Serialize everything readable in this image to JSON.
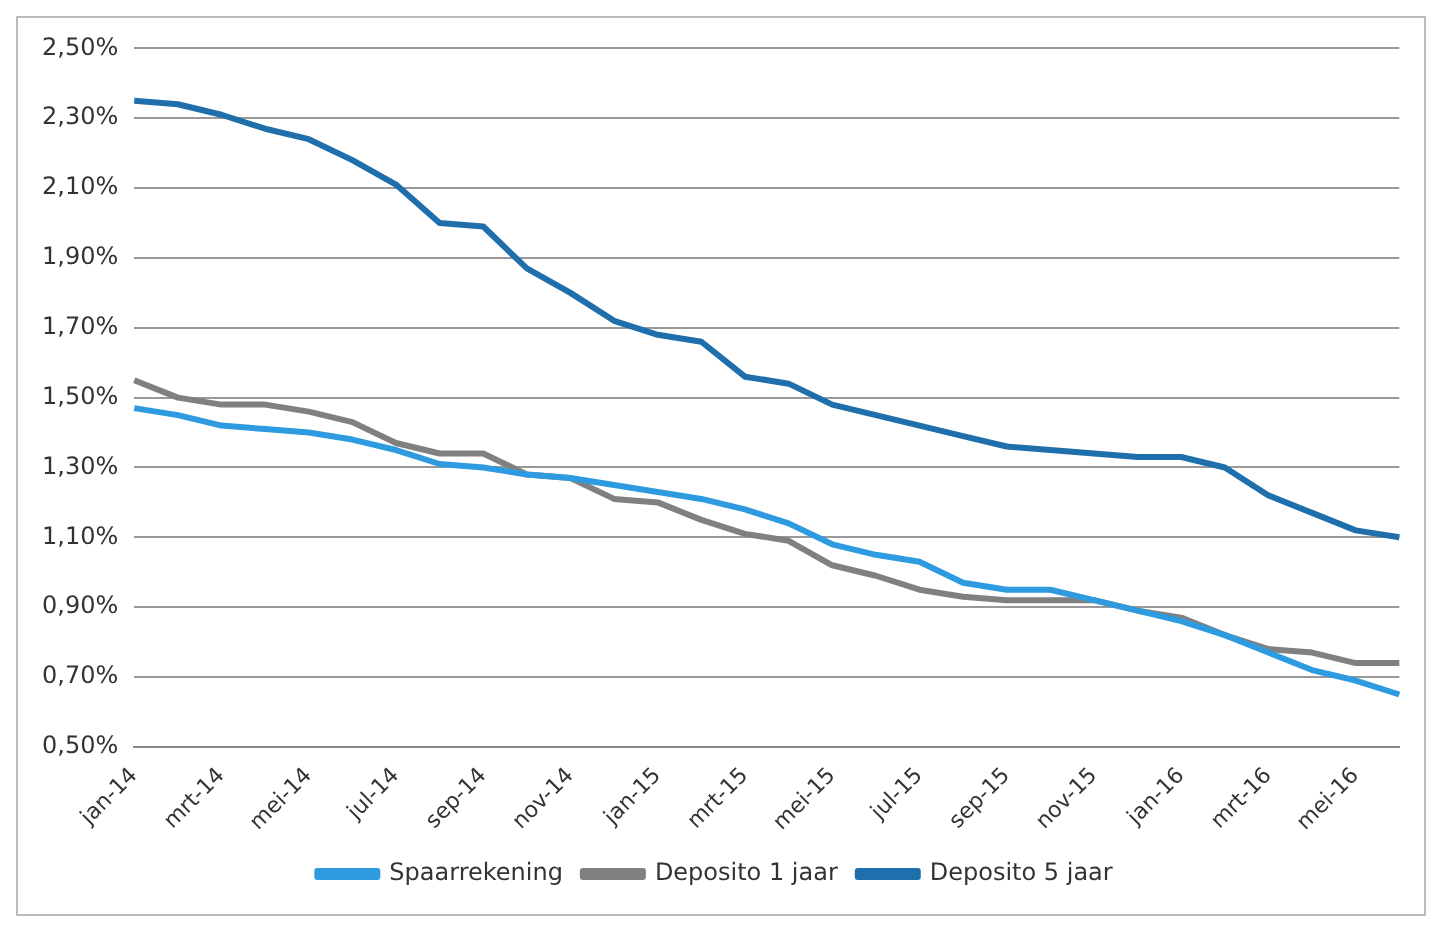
{
  "chart_data": {
    "type": "line",
    "categories": [
      "jan-14",
      null,
      "mrt-14",
      null,
      "mei-14",
      null,
      "jul-14",
      null,
      "sep-14",
      null,
      "nov-14",
      null,
      "jan-15",
      null,
      "mrt-15",
      null,
      "mei-15",
      null,
      "jul-15",
      null,
      "sep-15",
      null,
      "nov-15",
      null,
      "jan-16",
      null,
      "mrt-16",
      null,
      "mei-16",
      null
    ],
    "series": [
      {
        "name": "Spaarrekening",
        "color": "#2e9be0",
        "values": [
          1.47,
          1.45,
          1.42,
          1.41,
          1.4,
          1.38,
          1.35,
          1.31,
          1.3,
          1.28,
          1.27,
          1.25,
          1.23,
          1.21,
          1.18,
          1.14,
          1.08,
          1.05,
          1.03,
          0.97,
          0.95,
          0.95,
          0.92,
          0.89,
          0.86,
          0.82,
          0.77,
          0.72,
          0.69,
          0.65
        ]
      },
      {
        "name": "Deposito 1 jaar",
        "color": "#808080",
        "values": [
          1.55,
          1.5,
          1.48,
          1.48,
          1.46,
          1.43,
          1.37,
          1.34,
          1.34,
          1.28,
          1.27,
          1.21,
          1.2,
          1.15,
          1.11,
          1.09,
          1.02,
          0.99,
          0.95,
          0.93,
          0.92,
          0.92,
          0.92,
          0.89,
          0.87,
          0.82,
          0.78,
          0.77,
          0.74,
          0.74
        ]
      },
      {
        "name": "Deposito 5 jaar",
        "color": "#1f6fad",
        "values": [
          2.35,
          2.34,
          2.31,
          2.27,
          2.24,
          2.18,
          2.11,
          2.0,
          1.99,
          1.87,
          1.8,
          1.72,
          1.68,
          1.66,
          1.56,
          1.54,
          1.48,
          1.45,
          1.42,
          1.39,
          1.36,
          1.35,
          1.34,
          1.33,
          1.33,
          1.3,
          1.22,
          1.17,
          1.12,
          1.1
        ]
      }
    ],
    "ylim": [
      0.5,
      2.5
    ],
    "yticks": [
      {
        "value": 0.5,
        "label": "0,50%"
      },
      {
        "value": 0.7,
        "label": "0,70%"
      },
      {
        "value": 0.9,
        "label": "0,90%"
      },
      {
        "value": 1.1,
        "label": "1,10%"
      },
      {
        "value": 1.3,
        "label": "1,30%"
      },
      {
        "value": 1.5,
        "label": "1,50%"
      },
      {
        "value": 1.7,
        "label": "1,70%"
      },
      {
        "value": 1.9,
        "label": "1,90%"
      },
      {
        "value": 2.1,
        "label": "2,10%"
      },
      {
        "value": 2.3,
        "label": "2,30%"
      },
      {
        "value": 2.5,
        "label": "2,50%"
      }
    ],
    "grid": "y",
    "legend": "bottom",
    "marker": "none",
    "line_style": "solid"
  }
}
